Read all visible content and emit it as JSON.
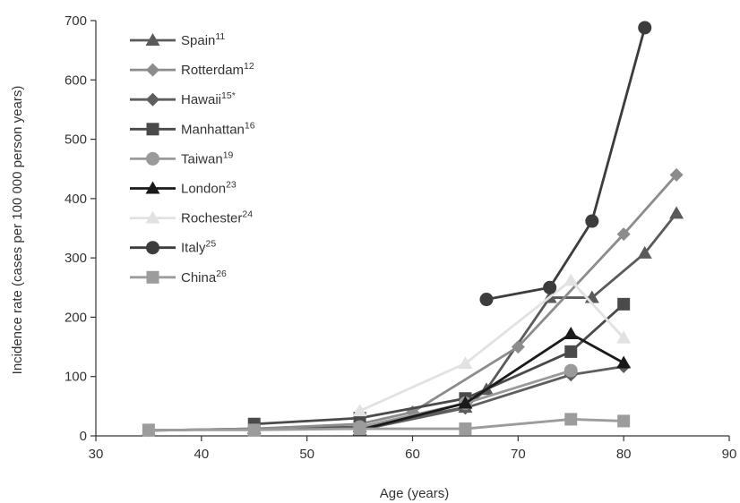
{
  "chart_data": {
    "type": "line",
    "xlabel": "Age (years)",
    "ylabel": "Incidence rate (cases per 100 000 person years)",
    "xlim": [
      30,
      90
    ],
    "ylim": [
      0,
      700
    ],
    "xticks": [
      30,
      40,
      50,
      60,
      70,
      80,
      90
    ],
    "yticks": [
      0,
      100,
      200,
      300,
      400,
      500,
      600,
      700
    ],
    "legend_position": "top-left",
    "grid": false,
    "series": [
      {
        "name": "Spain",
        "ref": "11",
        "color": "#5a5a5a",
        "marker": "triangle",
        "x": [
          35,
          45,
          55,
          65,
          67,
          73,
          77,
          82,
          85
        ],
        "y": [
          9,
          12,
          15,
          48,
          78,
          233,
          233,
          308,
          375
        ]
      },
      {
        "name": "Rotterdam",
        "ref": "12",
        "color": "#8c8c8c",
        "marker": "diamond",
        "x": [
          35,
          45,
          55,
          60,
          70,
          80,
          85
        ],
        "y": [
          9,
          12,
          20,
          40,
          150,
          340,
          440
        ]
      },
      {
        "name": "Hawaii",
        "ref": "15*",
        "color": "#5e5e5e",
        "marker": "diamond",
        "x": [
          55,
          65,
          75,
          80
        ],
        "y": [
          10,
          47,
          103,
          117
        ]
      },
      {
        "name": "Manhattan",
        "ref": "16",
        "color": "#4a4a4a",
        "marker": "square",
        "x": [
          45,
          55,
          65,
          75,
          80
        ],
        "y": [
          20,
          30,
          63,
          142,
          222
        ]
      },
      {
        "name": "Taiwan",
        "ref": "19",
        "color": "#9a9a9a",
        "marker": "circle",
        "x": [
          55,
          65,
          75
        ],
        "y": [
          15,
          55,
          110
        ]
      },
      {
        "name": "London",
        "ref": "23",
        "color": "#1a1a1a",
        "marker": "triangle",
        "x": [
          55,
          65,
          75,
          80
        ],
        "y": [
          10,
          55,
          172,
          123
        ]
      },
      {
        "name": "Rochester",
        "ref": "24",
        "color": "#e2e2e2",
        "marker": "triangle",
        "x": [
          55,
          65,
          75,
          80
        ],
        "y": [
          42,
          122,
          262,
          165
        ]
      },
      {
        "name": "Italy",
        "ref": "25",
        "color": "#3c3c3c",
        "marker": "circle",
        "x": [
          67,
          73,
          77,
          82
        ],
        "y": [
          230,
          250,
          362,
          688
        ]
      },
      {
        "name": "China",
        "ref": "26",
        "color": "#9c9c9c",
        "marker": "square",
        "x": [
          35,
          45,
          55,
          65,
          75,
          80
        ],
        "y": [
          10,
          10,
          12,
          12,
          28,
          25
        ]
      }
    ]
  }
}
